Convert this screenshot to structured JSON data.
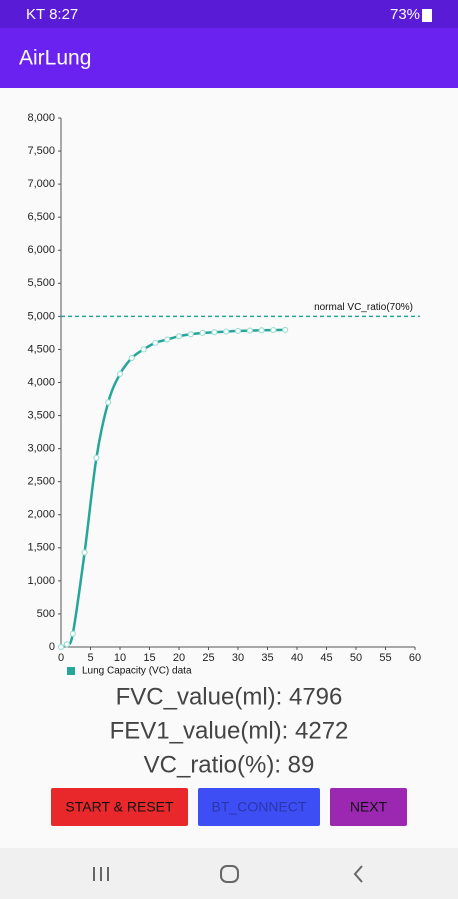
{
  "status_bar": {
    "carrier_time": "KT 8:27",
    "battery": "73%"
  },
  "app_bar": {
    "title": "AirLung"
  },
  "chart_data": {
    "type": "line",
    "x": [
      0,
      1,
      2,
      4,
      6,
      8,
      10,
      12,
      14,
      16,
      18,
      20,
      22,
      24,
      26,
      28,
      30,
      32,
      34,
      36,
      38
    ],
    "series": [
      {
        "name": "Lung Capacity (VC) data",
        "color": "#26a69a",
        "values": [
          0,
          40,
          200,
          1430,
          2860,
          3700,
          4130,
          4370,
          4500,
          4600,
          4650,
          4700,
          4730,
          4750,
          4760,
          4770,
          4780,
          4785,
          4790,
          4793,
          4796
        ]
      }
    ],
    "reference_line": {
      "value": 5000,
      "label": "normal VC_ratio(70%)",
      "color": "#26a69a"
    },
    "xlim": [
      0,
      60
    ],
    "xticks": [
      0,
      5,
      10,
      15,
      20,
      25,
      30,
      35,
      40,
      45,
      50,
      55,
      60
    ],
    "ylim": [
      0,
      8000
    ],
    "yticks": [
      0,
      500,
      {
        "value": 1000,
        "label": "1,000"
      },
      {
        "value": 1500,
        "label": "1,500"
      },
      {
        "value": 2000,
        "label": "2,000"
      },
      {
        "value": 2500,
        "label": "2,500"
      },
      {
        "value": 3000,
        "label": "3,000"
      },
      {
        "value": 3500,
        "label": "3,500"
      },
      {
        "value": 4000,
        "label": "4,000"
      },
      {
        "value": 4500,
        "label": "4,500"
      },
      {
        "value": 5000,
        "label": "5,000"
      },
      {
        "value": 5500,
        "label": "5,500"
      },
      {
        "value": 6000,
        "label": "6,000"
      },
      {
        "value": 6500,
        "label": "6,500"
      },
      {
        "value": 7000,
        "label": "7,000"
      },
      {
        "value": 7500,
        "label": "7,500"
      },
      {
        "value": 8000,
        "label": "8,000"
      }
    ],
    "grid": false,
    "legend": "bottom-left"
  },
  "results": {
    "fvc": "FVC_value(ml): 4796",
    "fev1": "FEV1_value(ml): 4272",
    "vc_ratio": "VC_ratio(%): 89"
  },
  "buttons": {
    "start_reset": "START & RESET",
    "bt_connect": "BT_CONNECT",
    "next": "NEXT"
  }
}
